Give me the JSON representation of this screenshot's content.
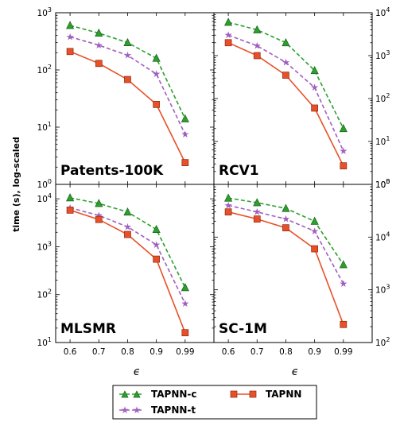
{
  "figure": {
    "ylabel": "time (s), log-scaled",
    "xlabel": "ϵ"
  },
  "legend": [
    {
      "label": "TAPNN-c",
      "color": "#2ca02c",
      "marker": "triangle",
      "dash": true
    },
    {
      "label": "TAPNN",
      "color": "#e8502a",
      "marker": "square",
      "dash": false
    },
    {
      "label": "TAPNN-t",
      "color": "#a05fbf",
      "marker": "star",
      "dash": true
    }
  ],
  "chart_data": [
    {
      "type": "line",
      "title": "Patents-100K",
      "x": [
        "0.6",
        "0.7",
        "0.8",
        "0.9",
        "0.99"
      ],
      "ylim": [
        1,
        1000
      ],
      "yscale": "log",
      "yaxis_side": "left",
      "yticks": [
        {
          "v": 1,
          "e": "0"
        },
        {
          "v": 10,
          "e": "1"
        },
        {
          "v": 100,
          "e": "2"
        },
        {
          "v": 1000,
          "e": "3"
        }
      ],
      "series": [
        {
          "name": "TAPNN-c",
          "values": [
            600,
            440,
            300,
            160,
            14
          ]
        },
        {
          "name": "TAPNN-t",
          "values": [
            380,
            270,
            180,
            85,
            7.5
          ]
        },
        {
          "name": "TAPNN",
          "values": [
            210,
            130,
            68,
            25,
            2.4
          ]
        }
      ]
    },
    {
      "type": "line",
      "title": "RCV1",
      "x": [
        "0.6",
        "0.7",
        "0.8",
        "0.9",
        "0.99"
      ],
      "ylim": [
        1,
        10000
      ],
      "yscale": "log",
      "yaxis_side": "right",
      "yticks": [
        {
          "v": 1,
          "e": "0"
        },
        {
          "v": 10,
          "e": "1"
        },
        {
          "v": 100,
          "e": "2"
        },
        {
          "v": 1000,
          "e": "3"
        },
        {
          "v": 10000,
          "e": "4"
        }
      ],
      "series": [
        {
          "name": "TAPNN-c",
          "values": [
            6000,
            4000,
            2000,
            450,
            20
          ]
        },
        {
          "name": "TAPNN-t",
          "values": [
            3000,
            1700,
            700,
            180,
            6
          ]
        },
        {
          "name": "TAPNN",
          "values": [
            2000,
            1000,
            350,
            60,
            2.7
          ]
        }
      ]
    },
    {
      "type": "line",
      "title": "MLSMR",
      "x": [
        "0.6",
        "0.7",
        "0.8",
        "0.9",
        "0.99"
      ],
      "ylim": [
        10,
        20000
      ],
      "yscale": "log",
      "yaxis_side": "left",
      "yticks": [
        {
          "v": 10,
          "e": "1"
        },
        {
          "v": 100,
          "e": "2"
        },
        {
          "v": 1000,
          "e": "3"
        },
        {
          "v": 10000,
          "e": "4"
        }
      ],
      "series": [
        {
          "name": "TAPNN-c",
          "values": [
            10500,
            8000,
            5300,
            2300,
            140
          ]
        },
        {
          "name": "TAPNN-t",
          "values": [
            6500,
            4500,
            2600,
            1100,
            65
          ]
        },
        {
          "name": "TAPNN",
          "values": [
            5800,
            3700,
            1800,
            550,
            16
          ]
        }
      ]
    },
    {
      "type": "line",
      "title": "SC-1M",
      "x": [
        "0.6",
        "0.7",
        "0.8",
        "0.9",
        "0.99"
      ],
      "ylim": [
        100,
        100000
      ],
      "yscale": "log",
      "yaxis_side": "right",
      "yticks": [
        {
          "v": 100,
          "e": "2"
        },
        {
          "v": 1000,
          "e": "3"
        },
        {
          "v": 10000,
          "e": "4"
        },
        {
          "v": 100000,
          "e": "5"
        }
      ],
      "series": [
        {
          "name": "TAPNN-c",
          "values": [
            55000,
            45000,
            35000,
            20000,
            3000
          ]
        },
        {
          "name": "TAPNN-t",
          "values": [
            40000,
            30000,
            22000,
            13000,
            1300
          ]
        },
        {
          "name": "TAPNN",
          "values": [
            30000,
            22000,
            15000,
            6000,
            220
          ]
        }
      ]
    }
  ]
}
